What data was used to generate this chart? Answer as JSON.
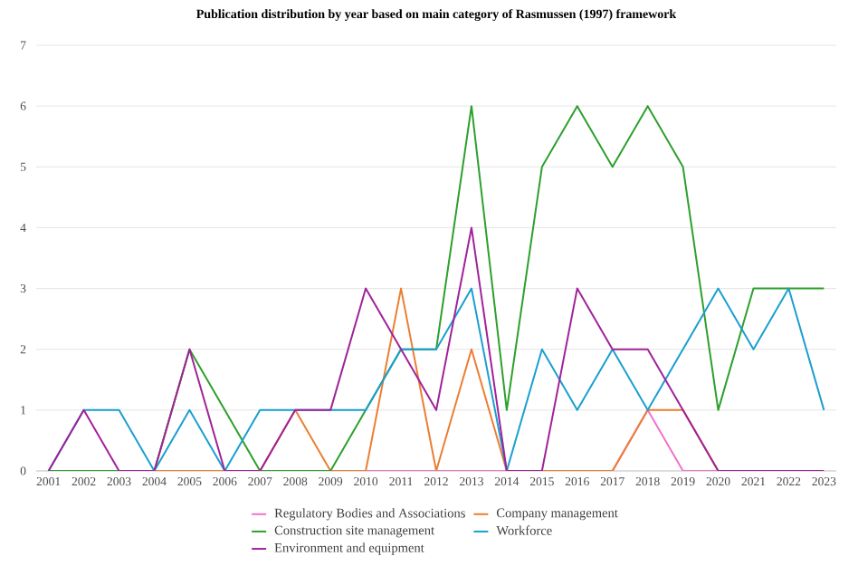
{
  "chart_data": {
    "type": "line",
    "title": "Publication distribution by year based on main category of Rasmussen (1997) framework",
    "categories": [
      "2001",
      "2002",
      "2003",
      "2004",
      "2005",
      "2006",
      "2007",
      "2008",
      "2009",
      "2010",
      "2011",
      "2012",
      "2013",
      "2014",
      "2015",
      "2016",
      "2017",
      "2018",
      "2019",
      "2020",
      "2021",
      "2022",
      "2023"
    ],
    "series": [
      {
        "name": "Regulatory Bodies and Associations",
        "color": "#f272c8",
        "values": [
          null,
          null,
          null,
          null,
          null,
          null,
          null,
          null,
          null,
          0,
          0,
          0,
          0,
          0,
          0,
          null,
          0,
          1,
          0,
          0,
          null,
          null,
          null
        ]
      },
      {
        "name": "Company management",
        "color": "#ed7d31",
        "values": [
          null,
          null,
          0,
          0,
          0,
          0,
          0,
          1,
          0,
          0,
          3,
          0,
          2,
          0,
          0,
          0,
          0,
          1,
          1,
          0,
          null,
          null,
          null
        ]
      },
      {
        "name": "Construction site management",
        "color": "#2ca02c",
        "values": [
          0,
          0,
          0,
          0,
          2,
          1,
          0,
          0,
          0,
          1,
          2,
          2,
          6,
          1,
          5,
          6,
          5,
          6,
          5,
          1,
          3,
          3,
          3
        ]
      },
      {
        "name": "Workforce",
        "color": "#1a9fd0",
        "values": [
          0,
          1,
          1,
          0,
          1,
          0,
          1,
          1,
          1,
          1,
          2,
          2,
          3,
          0,
          2,
          1,
          2,
          1,
          2,
          3,
          2,
          3,
          1
        ]
      },
      {
        "name": "Environment and equipment",
        "color": "#a0229a",
        "values": [
          0,
          1,
          0,
          0,
          2,
          0,
          0,
          1,
          1,
          3,
          2,
          1,
          4,
          0,
          0,
          3,
          2,
          2,
          1,
          0,
          0,
          0,
          0
        ]
      }
    ],
    "ylim": [
      0,
      7
    ],
    "yticks": [
      0,
      1,
      2,
      3,
      4,
      5,
      6,
      7
    ],
    "grid": "y",
    "legend": "bottom",
    "marker": "none",
    "line_style": "solid"
  }
}
